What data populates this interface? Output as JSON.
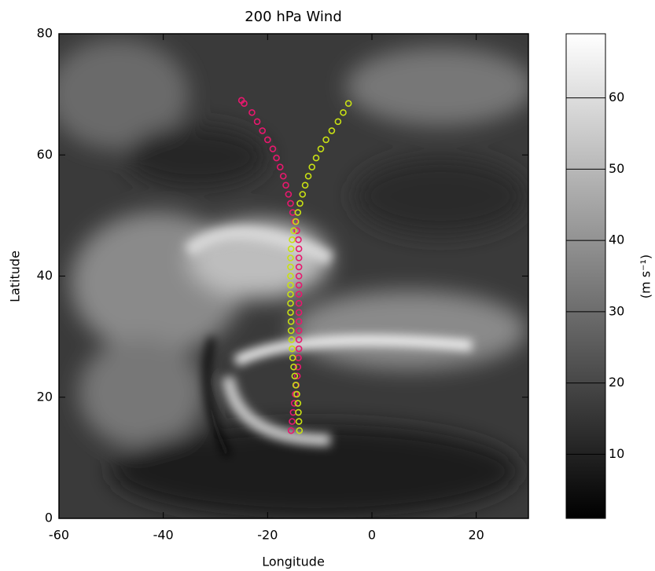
{
  "chart_data": {
    "type": "scatter",
    "title": "200 hPa Wind",
    "x_label": "Longitude",
    "y_label": "Latitude",
    "xlim": [
      -60,
      30
    ],
    "xticks": [
      -60,
      -40,
      -20,
      0,
      20
    ],
    "ylim": [
      0,
      80
    ],
    "yticks": [
      0,
      20,
      40,
      60,
      80
    ],
    "series": [
      {
        "color": "#e8186e",
        "x": [
          -25,
          -24.5,
          -23,
          -22,
          -21,
          -20,
          -19,
          -18.3,
          -17.6,
          -17,
          -16.5,
          -16,
          -15.6,
          -15.2,
          -14.8,
          -14.4,
          -14.1,
          -14,
          -14,
          -14,
          -14,
          -14,
          -14,
          -14,
          -14,
          -14,
          -14,
          -14,
          -14,
          -14.1,
          -14.2,
          -14.3,
          -14.5,
          -14.7,
          -14.9,
          -15.1,
          -15.3,
          -15.5
        ],
        "values": [
          69,
          68.5,
          67,
          65.5,
          64,
          62.5,
          61,
          59.5,
          58,
          56.5,
          55,
          53.5,
          52,
          50.5,
          49,
          47.5,
          46,
          44.5,
          43,
          41.5,
          40,
          38.5,
          37,
          35.5,
          34,
          32.5,
          31,
          29.5,
          28,
          26.5,
          25,
          23.5,
          22,
          20.5,
          19,
          17.5,
          16,
          14.5
        ]
      },
      {
        "color": "#c8e014",
        "x": [
          -4.5,
          -5.5,
          -6.5,
          -7.7,
          -8.8,
          -9.8,
          -10.7,
          -11.5,
          -12.2,
          -12.8,
          -13.3,
          -13.8,
          -14.2,
          -14.6,
          -15,
          -15.3,
          -15.5,
          -15.6,
          -15.6,
          -15.6,
          -15.6,
          -15.6,
          -15.6,
          -15.6,
          -15.5,
          -15.5,
          -15.4,
          -15.3,
          -15.2,
          -15,
          -14.8,
          -14.6,
          -14.4,
          -14.2,
          -14.1,
          -14,
          -13.9
        ],
        "values": [
          68.5,
          67,
          65.5,
          64,
          62.5,
          61,
          59.5,
          58,
          56.5,
          55,
          53.5,
          52,
          50.5,
          49,
          47.5,
          46,
          44.5,
          43,
          41.5,
          40,
          38.5,
          37,
          35.5,
          34,
          32.5,
          31,
          29.5,
          28,
          26.5,
          25,
          23.5,
          22,
          20.5,
          19,
          17.5,
          16,
          14.5
        ]
      }
    ],
    "colorbar": {
      "label": "(m s⁻¹)",
      "lim": [
        1,
        69
      ],
      "ticks": [
        10,
        20,
        30,
        40,
        50,
        60
      ]
    }
  }
}
